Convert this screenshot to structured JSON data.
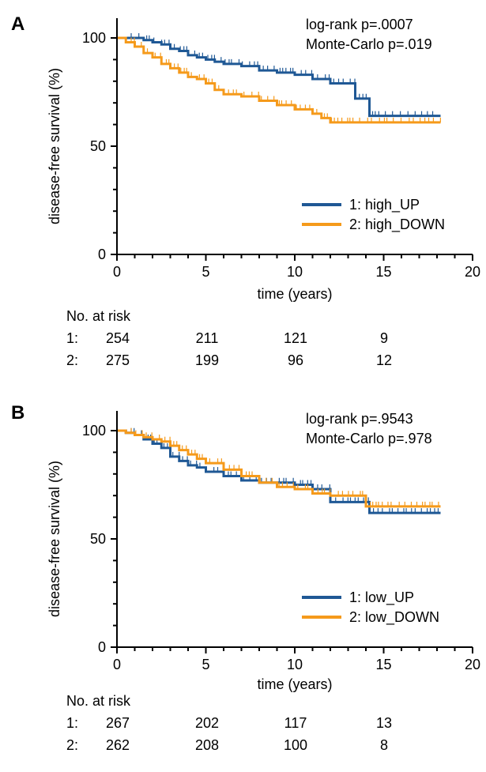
{
  "colors": {
    "up": "#1f5895",
    "down": "#f59a1b",
    "axis": "#000000"
  },
  "chart_data": [
    {
      "type": "line",
      "panel_label": "A",
      "xlabel": "time (years)",
      "ylabel": "disease-free survival (%)",
      "xlim": [
        0,
        20
      ],
      "ylim": [
        0,
        100
      ],
      "xticks": [
        0,
        5,
        10,
        15,
        20
      ],
      "yticks": [
        0,
        50,
        100
      ],
      "annotations": [
        "log-rank p=.0007",
        "Monte-Carlo p=.019"
      ],
      "legend_position": "bottom-right",
      "series": [
        {
          "name": "1: high_UP",
          "color": "#1f5895",
          "x": [
            0,
            1.5,
            2,
            2.5,
            3,
            3.5,
            4,
            4.5,
            5,
            5.5,
            6,
            7,
            8,
            9,
            10,
            11,
            12,
            13,
            13.4,
            14.2,
            18.2
          ],
          "y": [
            100,
            99,
            98,
            97,
            95,
            94,
            92,
            91,
            90,
            89,
            88,
            87,
            85,
            84,
            83,
            81,
            79,
            79,
            72,
            64,
            64
          ]
        },
        {
          "name": "2: high_DOWN",
          "color": "#f59a1b",
          "x": [
            0,
            0.5,
            1,
            1.5,
            2,
            2.5,
            3,
            3.5,
            4,
            4.5,
            5,
            5.5,
            6,
            7,
            8,
            9,
            10,
            11,
            11.5,
            12,
            18.2
          ],
          "y": [
            100,
            98,
            96,
            93,
            91,
            88,
            86,
            84,
            82,
            81,
            79,
            76,
            74,
            73,
            71,
            69,
            67,
            65,
            63,
            61,
            61
          ]
        }
      ],
      "risk_table": {
        "title": "No. at risk",
        "times": [
          0,
          5,
          10,
          15
        ],
        "rows": [
          {
            "label": "1:",
            "values": [
              "254",
              "211",
              "121",
              "9"
            ]
          },
          {
            "label": "2:",
            "values": [
              "275",
              "199",
              "96",
              "12"
            ]
          }
        ]
      }
    },
    {
      "type": "line",
      "panel_label": "B",
      "xlabel": "time (years)",
      "ylabel": "disease-free survival (%)",
      "xlim": [
        0,
        20
      ],
      "ylim": [
        0,
        100
      ],
      "xticks": [
        0,
        5,
        10,
        15,
        20
      ],
      "yticks": [
        0,
        50,
        100
      ],
      "annotations": [
        "log-rank p=.9543",
        "Monte-Carlo p=.978"
      ],
      "legend_position": "bottom-right",
      "series": [
        {
          "name": "1: low_UP",
          "color": "#1f5895",
          "x": [
            0,
            0.5,
            1,
            1.5,
            2,
            2.5,
            3,
            3.5,
            4,
            4.5,
            5,
            6,
            7,
            8,
            9,
            10,
            11,
            12,
            14.2,
            18.2
          ],
          "y": [
            100,
            99,
            98,
            96,
            94,
            92,
            88,
            86,
            84,
            83,
            81,
            79,
            77,
            76,
            76,
            75,
            73,
            67,
            62,
            62
          ]
        },
        {
          "name": "2: low_DOWN",
          "color": "#f59a1b",
          "x": [
            0,
            0.5,
            1,
            1.5,
            2,
            2.5,
            3,
            3.5,
            4,
            4.5,
            5,
            6,
            7,
            8,
            9,
            10,
            11,
            12,
            14,
            18.2
          ],
          "y": [
            100,
            99,
            98,
            97,
            96,
            95,
            93,
            91,
            89,
            87,
            85,
            82,
            79,
            76,
            74,
            73,
            71,
            70,
            65,
            65
          ]
        }
      ],
      "risk_table": {
        "title": "No. at risk",
        "times": [
          0,
          5,
          10,
          15
        ],
        "rows": [
          {
            "label": "1:",
            "values": [
              "267",
              "202",
              "117",
              "13"
            ]
          },
          {
            "label": "2:",
            "values": [
              "262",
              "208",
              "100",
              "8"
            ]
          }
        ]
      }
    }
  ]
}
